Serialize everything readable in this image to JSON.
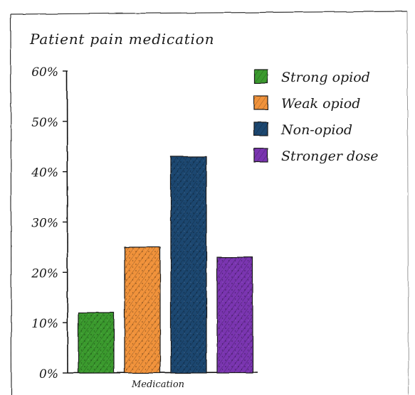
{
  "chart_data": {
    "type": "bar",
    "title": "Patient pain medication",
    "xlabel": "Medication",
    "ylabel": "",
    "categories": [
      "Medication"
    ],
    "series": [
      {
        "name": "Strong opiod",
        "values": [
          12
        ],
        "color": "#3a9a2e"
      },
      {
        "name": "Weak opiod",
        "values": [
          25
        ],
        "color": "#f0923a"
      },
      {
        "name": "Non-opiod",
        "values": [
          43
        ],
        "color": "#1d4670"
      },
      {
        "name": "Stronger dose",
        "values": [
          23
        ],
        "color": "#7a36b0"
      }
    ],
    "ylim": [
      0,
      60
    ],
    "yticks": [
      "0%",
      "10%",
      "20%",
      "30%",
      "40%",
      "50%",
      "60%"
    ],
    "legend_position": "top-right",
    "grid": false,
    "style": "hand-drawn sketch"
  }
}
